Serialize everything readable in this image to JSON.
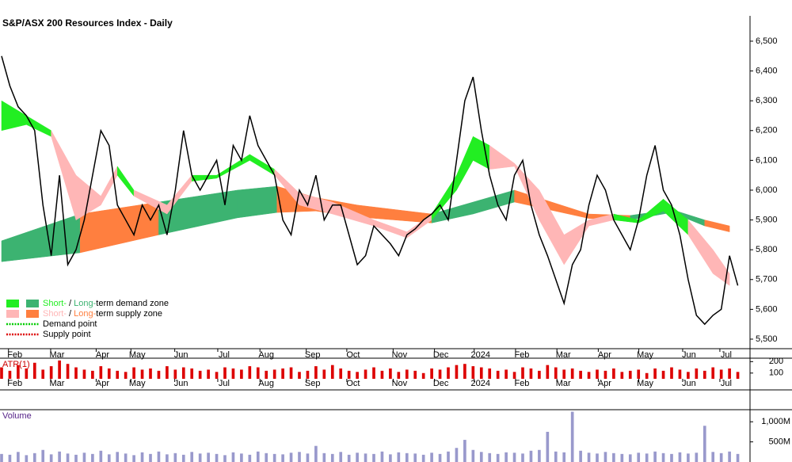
{
  "chart_data": {
    "type": "line",
    "title": "S&P/ASX 200 Resources Index - Daily",
    "xlim": [
      0,
      90
    ],
    "xticks": [
      {
        "value": 1.6,
        "label": "Feb"
      },
      {
        "value": 6.7,
        "label": "Mar"
      },
      {
        "value": 12.2,
        "label": "Apr"
      },
      {
        "value": 16.4,
        "label": "May"
      },
      {
        "value": 21.7,
        "label": "Jun"
      },
      {
        "value": 26.9,
        "label": "Jul"
      },
      {
        "value": 32,
        "label": "Aug"
      },
      {
        "value": 37.6,
        "label": "Sep"
      },
      {
        "value": 42.5,
        "label": "Oct"
      },
      {
        "value": 48.1,
        "label": "Nov"
      },
      {
        "value": 53.1,
        "label": "Dec"
      },
      {
        "value": 57.9,
        "label": "2024"
      },
      {
        "value": 62.9,
        "label": "Feb"
      },
      {
        "value": 67.9,
        "label": "Mar"
      },
      {
        "value": 72.9,
        "label": "Apr"
      },
      {
        "value": 77.8,
        "label": "May"
      },
      {
        "value": 83.1,
        "label": "Jun"
      },
      {
        "value": 87.6,
        "label": "Jul"
      }
    ],
    "ylim": [
      5468,
      6585
    ],
    "yticks": [
      {
        "value": 5500,
        "label": "5,500"
      },
      {
        "value": 5600,
        "label": "5,600"
      },
      {
        "value": 5700,
        "label": "5,700"
      },
      {
        "value": 5800,
        "label": "5,800"
      },
      {
        "value": 5900,
        "label": "5,900"
      },
      {
        "value": 6000,
        "label": "6,000"
      },
      {
        "value": 6100,
        "label": "6,100"
      },
      {
        "value": 6200,
        "label": "6,200"
      },
      {
        "value": 6300,
        "label": "6,300"
      },
      {
        "value": 6400,
        "label": "6,400"
      },
      {
        "value": 6500,
        "label": "6,500"
      }
    ],
    "series": [
      {
        "name": "Close",
        "color": "#000000",
        "values": [
          6450,
          6350,
          6280,
          6250,
          6200,
          5950,
          5780,
          6050,
          5750,
          5800,
          5900,
          6050,
          6200,
          6150,
          5950,
          5900,
          5850,
          5950,
          5900,
          5950,
          5850,
          6000,
          6200,
          6050,
          6000,
          6050,
          6100,
          5950,
          6150,
          6100,
          6250,
          6150,
          6100,
          6050,
          5900,
          5850,
          6000,
          5950,
          6050,
          5900,
          5950,
          5950,
          5850,
          5750,
          5780,
          5880,
          5850,
          5820,
          5780,
          5850,
          5870,
          5900,
          5920,
          5950,
          5900,
          6100,
          6300,
          6380,
          6200,
          6050,
          5950,
          5900,
          6050,
          6100,
          5950,
          5850,
          5780,
          5700,
          5620,
          5750,
          5800,
          5950,
          6050,
          6000,
          5900,
          5850,
          5800,
          5900,
          6050,
          6150,
          6000,
          5950,
          5850,
          5700,
          5580,
          5550,
          5580,
          5600,
          5780,
          5680
        ]
      }
    ],
    "zones": [
      {
        "name": "long",
        "demand_color": "#3cb371",
        "supply_color": "#ff7f3f",
        "x": [
          0,
          9.5,
          19,
          28.5,
          33.3,
          38,
          43,
          52,
          57,
          62,
          71,
          76,
          81,
          85,
          88
        ],
        "upper": [
          5830,
          5920,
          5960,
          6000,
          6013,
          5975,
          5950,
          5920,
          5960,
          6000,
          5920,
          5915,
          5935,
          5900,
          5880
        ],
        "lower": [
          5760,
          5790,
          5850,
          5907,
          5925,
          5930,
          5910,
          5890,
          5920,
          5960,
          5905,
          5900,
          5925,
          5880,
          5860
        ],
        "state": [
          "demand",
          "supply",
          "demand",
          "demand",
          "supply",
          "supply",
          "supply",
          "demand",
          "demand",
          "supply",
          "supply",
          "demand",
          "demand",
          "supply",
          "supply"
        ]
      },
      {
        "name": "short",
        "demand_color": "#22ee22",
        "supply_color": "#ffb6b6",
        "x": [
          0,
          3,
          6,
          9,
          12,
          14,
          16,
          20,
          23,
          26,
          30,
          33,
          36,
          40,
          45,
          49,
          52,
          55,
          57,
          59,
          62,
          65,
          68,
          71,
          74,
          77,
          80,
          83,
          86,
          88
        ],
        "upper": [
          6300,
          6250,
          6200,
          6050,
          5980,
          6080,
          6000,
          5950,
          6050,
          6050,
          6120,
          6070,
          5990,
          5960,
          5900,
          5860,
          5920,
          6050,
          6180,
          6150,
          6090,
          6000,
          5850,
          5900,
          5920,
          5900,
          5970,
          5900,
          5800,
          5720
        ],
        "lower": [
          6200,
          6220,
          6180,
          5900,
          5950,
          6050,
          5980,
          5920,
          6030,
          6040,
          6100,
          6050,
          5950,
          5920,
          5880,
          5840,
          5900,
          6000,
          6100,
          6070,
          6080,
          5900,
          5750,
          5880,
          5900,
          5890,
          5930,
          5850,
          5720,
          5680
        ],
        "state": [
          "demand",
          "demand",
          "supply",
          "supply",
          "supply",
          "demand",
          "supply",
          "supply",
          "demand",
          "demand",
          "demand",
          "supply",
          "supply",
          "supply",
          "supply",
          "supply",
          "demand",
          "demand",
          "demand",
          "supply",
          "supply",
          "supply",
          "supply",
          "supply",
          "demand",
          "demand",
          "demand",
          "supply",
          "supply",
          "supply"
        ]
      }
    ],
    "legend": [
      {
        "short": "Short-",
        "sep": " / ",
        "long": "Long-",
        "rest": "term demand zone"
      },
      {
        "short": "Short-",
        "sep": " / ",
        "long": "Long-",
        "rest": "term supply zone"
      },
      {
        "label": "Demand point",
        "color": "#00cc00"
      },
      {
        "label": "Supply point",
        "color": "#dd0000"
      }
    ],
    "atr": {
      "title": "ATR(1)",
      "color": "#dd0000",
      "ylim": [
        50,
        230
      ],
      "yticks": [
        100,
        200
      ],
      "values": [
        150,
        120,
        170,
        140,
        190,
        130,
        160,
        210,
        180,
        150,
        130,
        120,
        160,
        140,
        120,
        110,
        150,
        130,
        140,
        120,
        160,
        130,
        150,
        140,
        120,
        130,
        110,
        150,
        140,
        130,
        160,
        150,
        120,
        130,
        140,
        150,
        110,
        120,
        160,
        130,
        170,
        140,
        120,
        110,
        130,
        150,
        120,
        140,
        110,
        130,
        120,
        100,
        140,
        130,
        150,
        170,
        180,
        160,
        150,
        140,
        120,
        130,
        110,
        150,
        140,
        120,
        170,
        150,
        130,
        140,
        120,
        110,
        130,
        120,
        140,
        110,
        120,
        130,
        100,
        140,
        120,
        150,
        130,
        110,
        140,
        120,
        150,
        130,
        140,
        110
      ]
    },
    "volume": {
      "title": "Volume",
      "color": "#9999cc",
      "ylim": [
        0,
        1300
      ],
      "yticks": [
        {
          "value": 500,
          "label": "500M"
        },
        {
          "value": 1000,
          "label": "1,000M"
        }
      ],
      "values": [
        200,
        180,
        250,
        170,
        220,
        300,
        190,
        260,
        210,
        180,
        230,
        200,
        280,
        190,
        250,
        210,
        170,
        240,
        200,
        260,
        190,
        220,
        180,
        250,
        210,
        230,
        200,
        170,
        240,
        210,
        180,
        260,
        220,
        200,
        190,
        230,
        250,
        210,
        400,
        220,
        200,
        250,
        180,
        230,
        210,
        200,
        260,
        190,
        240,
        220,
        210,
        180,
        230,
        200,
        260,
        350,
        550,
        300,
        250,
        220,
        200,
        240,
        230,
        210,
        280,
        300,
        750,
        260,
        240,
        1250,
        280,
        230,
        210,
        250,
        220,
        200,
        190,
        230,
        210,
        260,
        220,
        200,
        240,
        210,
        230,
        900,
        250,
        220,
        260,
        200
      ]
    }
  }
}
